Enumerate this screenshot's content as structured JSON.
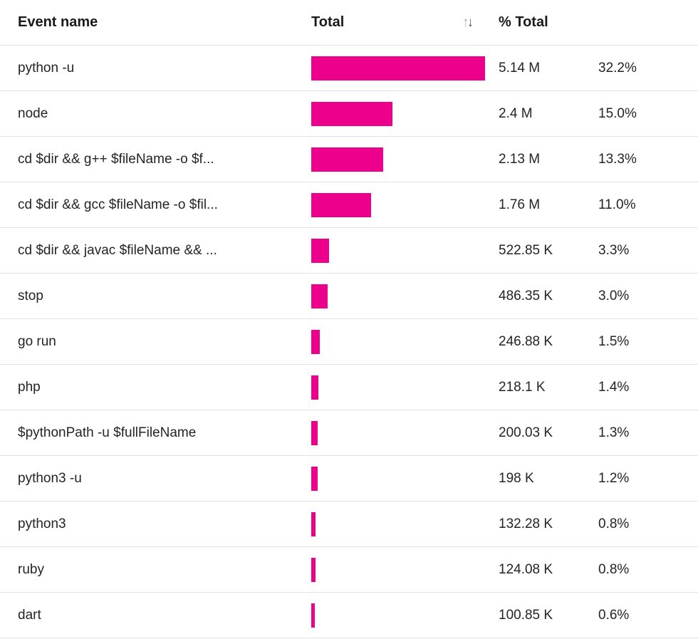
{
  "accent_color": "#EC008C",
  "text_color": "#252423",
  "divider_color": "#E1E1E1",
  "header": {
    "event_col": "Event name",
    "total_col": "Total",
    "pct_col": "% Total",
    "sort_icon_up": "↑",
    "sort_icon_down": "↓"
  },
  "chart_data": {
    "type": "table",
    "columns": [
      "Event name",
      "Total",
      "% Total"
    ],
    "bar_column": "Total",
    "max_value": 5140000,
    "rows": [
      {
        "event": "python -u",
        "value": 5140000,
        "total_label": "5.14 M",
        "pct_label": "32.2%"
      },
      {
        "event": "node",
        "value": 2400000,
        "total_label": "2.4 M",
        "pct_label": "15.0%"
      },
      {
        "event": "cd $dir && g++ $fileName -o $f...",
        "value": 2130000,
        "total_label": "2.13 M",
        "pct_label": "13.3%"
      },
      {
        "event": "cd $dir && gcc $fileName -o $fil...",
        "value": 1760000,
        "total_label": "1.76 M",
        "pct_label": "11.0%"
      },
      {
        "event": "cd $dir && javac $fileName && ...",
        "value": 522850,
        "total_label": "522.85 K",
        "pct_label": "3.3%"
      },
      {
        "event": "stop",
        "value": 486350,
        "total_label": "486.35 K",
        "pct_label": "3.0%"
      },
      {
        "event": "go run",
        "value": 246880,
        "total_label": "246.88 K",
        "pct_label": "1.5%"
      },
      {
        "event": "php",
        "value": 218100,
        "total_label": "218.1 K",
        "pct_label": "1.4%"
      },
      {
        "event": "$pythonPath -u $fullFileName",
        "value": 200030,
        "total_label": "200.03 K",
        "pct_label": "1.3%"
      },
      {
        "event": "python3 -u",
        "value": 198000,
        "total_label": "198 K",
        "pct_label": "1.2%"
      },
      {
        "event": "python3",
        "value": 132280,
        "total_label": "132.28 K",
        "pct_label": "0.8%"
      },
      {
        "event": "ruby",
        "value": 124080,
        "total_label": "124.08 K",
        "pct_label": "0.8%"
      },
      {
        "event": "dart",
        "value": 100850,
        "total_label": "100.85 K",
        "pct_label": "0.6%"
      }
    ]
  }
}
